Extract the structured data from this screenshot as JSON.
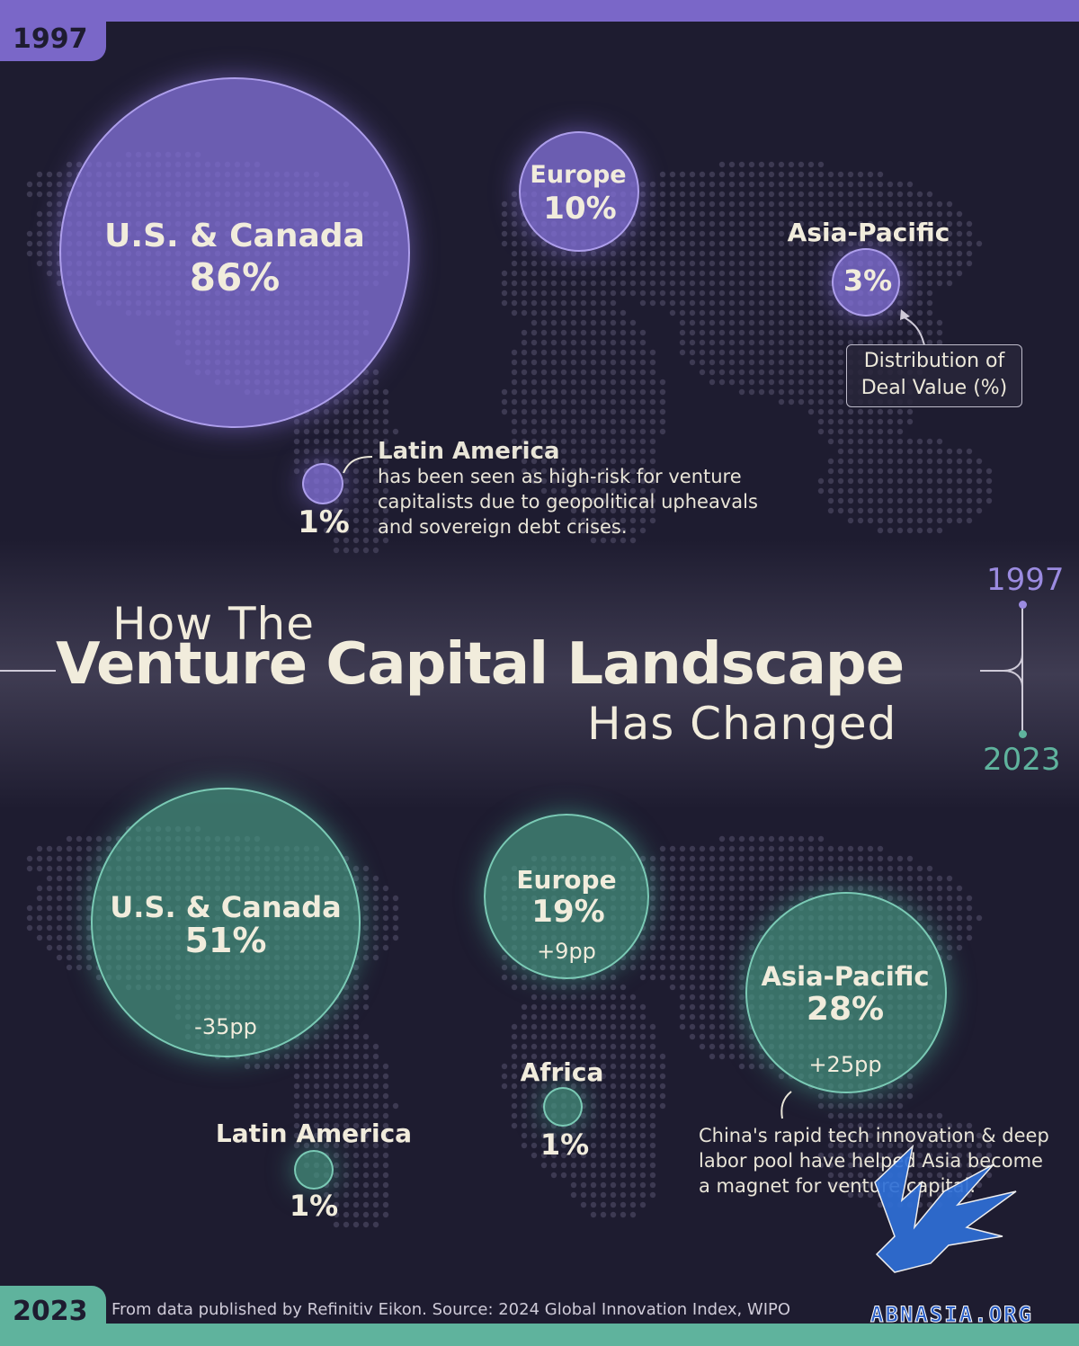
{
  "header": {
    "year_top": "1997",
    "year_bottom": "2023"
  },
  "title": {
    "line1": "How The",
    "line2": "Venture Capital Landscape",
    "line3": "Has Changed",
    "year_start": "1997",
    "year_end": "2023"
  },
  "legend": {
    "text_line1": "Distribution of",
    "text_line2": "Deal Value (%)"
  },
  "notes": {
    "latam_title": "Latin America",
    "latam_lines": [
      "has been seen as high-risk for venture",
      "capitalists due to geopolitical upheavals",
      "and sovereign debt crises."
    ],
    "china_lines": [
      "China's rapid tech innovation & deep",
      "labor pool have helped Asia become",
      "a magnet for venture capital."
    ]
  },
  "source": "From data published by Refinitiv Eikon. Source: 2024 Global Innovation Index, WIPO",
  "watermark": "ABNASIA.ORG",
  "colors": {
    "y1997": "#7a67c8",
    "y2023": "#5fb39d",
    "background": "#1e1c30",
    "text": "#f1ecdc"
  },
  "chart_data": [
    {
      "type": "bubble",
      "year": "1997",
      "value_unit": "%",
      "categories": [
        "U.S. & Canada",
        "Europe",
        "Asia-Pacific",
        "Latin America"
      ],
      "values": [
        86,
        10,
        3,
        1
      ],
      "labels": [
        "86%",
        "10%",
        "3%",
        "1%"
      ]
    },
    {
      "type": "bubble",
      "year": "2023",
      "value_unit": "%",
      "categories": [
        "U.S. & Canada",
        "Europe",
        "Asia-Pacific",
        "Latin America",
        "Africa"
      ],
      "values": [
        51,
        19,
        28,
        1,
        1
      ],
      "labels": [
        "51%",
        "19%",
        "28%",
        "1%",
        "1%"
      ],
      "change_pp": [
        "-35pp",
        "+9pp",
        "+25pp",
        "",
        ""
      ]
    }
  ]
}
